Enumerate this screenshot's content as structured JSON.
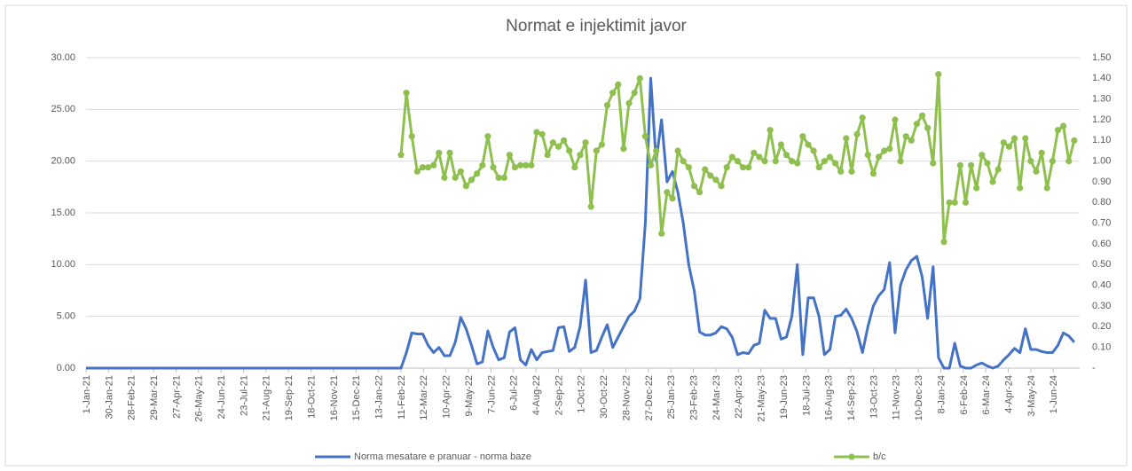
{
  "chart_data": {
    "type": "line",
    "title": "Normat e injektimit javor",
    "x": [
      "1-Jan-21",
      "11-Feb-22",
      "18-Feb-22",
      "25-Feb-22",
      "4-Mar-22",
      "11-Mar-22",
      "18-Mar-22",
      "25-Mar-22",
      "1-Apr-22",
      "8-Apr-22",
      "15-Apr-22",
      "22-Apr-22",
      "29-Apr-22",
      "6-May-22",
      "13-May-22",
      "20-May-22",
      "27-May-22",
      "3-Jun-22",
      "10-Jun-22",
      "17-Jun-22",
      "24-Jun-22",
      "1-Jul-22",
      "8-Jul-22",
      "15-Jul-22",
      "22-Jul-22",
      "29-Jul-22",
      "5-Aug-22",
      "12-Aug-22",
      "19-Aug-22",
      "26-Aug-22",
      "2-Sep-22",
      "9-Sep-22",
      "16-Sep-22",
      "23-Sep-22",
      "30-Sep-22",
      "7-Oct-22",
      "14-Oct-22",
      "21-Oct-22",
      "28-Oct-22",
      "4-Nov-22",
      "11-Nov-22",
      "18-Nov-22",
      "25-Nov-22",
      "2-Dec-22",
      "9-Dec-22",
      "16-Dec-22",
      "23-Dec-22",
      "30-Dec-22",
      "6-Jan-23",
      "13-Jan-23",
      "20-Jan-23",
      "27-Jan-23",
      "3-Feb-23",
      "10-Feb-23",
      "17-Feb-23",
      "24-Feb-23",
      "3-Mar-23",
      "10-Mar-23",
      "17-Mar-23",
      "24-Mar-23",
      "31-Mar-23",
      "7-Apr-23",
      "14-Apr-23",
      "21-Apr-23",
      "28-Apr-23",
      "5-May-23",
      "12-May-23",
      "19-May-23",
      "26-May-23",
      "2-Jun-23",
      "9-Jun-23",
      "16-Jun-23",
      "23-Jun-23",
      "30-Jun-23",
      "7-Jul-23",
      "14-Jul-23",
      "21-Jul-23",
      "28-Jul-23",
      "4-Aug-23",
      "11-Aug-23",
      "18-Aug-23",
      "25-Aug-23",
      "1-Sep-23",
      "8-Sep-23",
      "15-Sep-23",
      "22-Sep-23",
      "29-Sep-23",
      "6-Oct-23",
      "13-Oct-23",
      "20-Oct-23",
      "27-Oct-23",
      "3-Nov-23",
      "10-Nov-23",
      "17-Nov-23",
      "24-Nov-23",
      "1-Dec-23",
      "8-Dec-23",
      "15-Dec-23",
      "22-Dec-23",
      "29-Dec-23",
      "5-Jan-24",
      "12-Jan-24",
      "19-Jan-24",
      "26-Jan-24",
      "2-Feb-24",
      "9-Feb-24",
      "16-Feb-24",
      "23-Feb-24",
      "1-Mar-24",
      "8-Mar-24",
      "15-Mar-24",
      "22-Mar-24",
      "29-Mar-24",
      "5-Apr-24",
      "12-Apr-24",
      "19-Apr-24",
      "26-Apr-24",
      "3-May-24",
      "10-May-24",
      "17-May-24",
      "24-May-24",
      "31-May-24",
      "7-Jun-24",
      "14-Jun-24",
      "21-Jun-24",
      "28-Jun-24"
    ],
    "series": [
      {
        "name": "Norma mesatare e pranuar - norma baze",
        "color": "#4472c4",
        "values": [
          0,
          0,
          1.5,
          3.4,
          3.3,
          3.3,
          2.2,
          1.5,
          2.0,
          1.2,
          1.2,
          2.5,
          4.9,
          3.8,
          2.2,
          0.4,
          0.6,
          3.6,
          2.0,
          0.8,
          1.0,
          3.5,
          3.9,
          0.8,
          0.3,
          1.8,
          0.8,
          1.5,
          1.6,
          1.7,
          3.9,
          4.0,
          1.6,
          2.0,
          4.0,
          8.5,
          1.5,
          1.7,
          3.0,
          4.2,
          2.0,
          3.0,
          4.0,
          5.0,
          5.5,
          6.7,
          14,
          28,
          20,
          24,
          18,
          19,
          17,
          14,
          10,
          7.5,
          3.5,
          3.2,
          3.2,
          3.4,
          4.0,
          3.8,
          3.0,
          1.3,
          1.5,
          1.4,
          2.2,
          2.4,
          5.6,
          4.8,
          4.8,
          2.8,
          3.0,
          5.0,
          10.0,
          1.3,
          6.8,
          6.8,
          5.0,
          1.3,
          1.8,
          5.0,
          5.1,
          5.7,
          4.8,
          3.5,
          1.5,
          4.0,
          6.0,
          7.0,
          7.6,
          10.2,
          3.4,
          8.0,
          9.5,
          10.4,
          10.8,
          8.8,
          4.8,
          9.8,
          1.0,
          0.0,
          0.0,
          2.4,
          0.2,
          0.0,
          0.0,
          0.3,
          0.5,
          0.2,
          0.0,
          0.2,
          0.8,
          1.3,
          1.9,
          1.5,
          3.8,
          1.8,
          1.8,
          1.6,
          1.5,
          1.5,
          2.2,
          3.4,
          3.1,
          2.5
        ]
      },
      {
        "name": "b/c",
        "color": "#8fc04f",
        "axis": "y2",
        "marker": true,
        "values": [
          null,
          1.03,
          1.33,
          1.12,
          0.95,
          0.97,
          0.97,
          0.98,
          1.04,
          0.92,
          1.04,
          0.92,
          0.95,
          0.88,
          0.91,
          0.94,
          0.98,
          1.12,
          0.97,
          0.92,
          0.92,
          1.03,
          0.97,
          0.98,
          0.98,
          0.98,
          1.14,
          1.13,
          1.03,
          1.09,
          1.07,
          1.1,
          1.05,
          0.97,
          1.03,
          1.09,
          0.78,
          1.05,
          1.08,
          1.27,
          1.33,
          1.37,
          1.06,
          1.28,
          1.33,
          1.4,
          1.12,
          0.98,
          1.05,
          0.65,
          0.85,
          0.82,
          1.05,
          1.0,
          0.97,
          0.88,
          0.85,
          0.96,
          0.93,
          0.91,
          0.88,
          0.97,
          1.02,
          1.0,
          0.97,
          0.97,
          1.04,
          1.02,
          1.0,
          1.15,
          1.0,
          1.08,
          1.03,
          1.0,
          0.99,
          1.12,
          1.08,
          1.05,
          0.97,
          1.0,
          1.02,
          0.99,
          0.95,
          1.11,
          0.95,
          1.13,
          1.21,
          1.03,
          0.94,
          1.02,
          1.05,
          1.06,
          1.2,
          1.0,
          1.12,
          1.1,
          1.18,
          1.22,
          1.16,
          0.99,
          1.42,
          0.61,
          0.8,
          0.8,
          0.98,
          0.8,
          0.98,
          0.87,
          1.03,
          0.99,
          0.9,
          0.96,
          1.09,
          1.07,
          1.11,
          0.87,
          1.11,
          1.0,
          0.95,
          1.04,
          0.87,
          1.0,
          1.15,
          1.17,
          1.0,
          1.1
        ]
      }
    ],
    "xlim": [
      "1-Jan-21",
      "5-Jul-24"
    ],
    "xticks": [
      "1-Jan-21",
      "30-Jan-21",
      "28-Feb-21",
      "29-Mar-21",
      "27-Apr-21",
      "26-May-21",
      "24-Jun-21",
      "23-Jul-21",
      "21-Aug-21",
      "19-Sep-21",
      "18-Oct-21",
      "16-Nov-21",
      "15-Dec-21",
      "13-Jan-22",
      "11-Feb-22",
      "12-Mar-22",
      "10-Apr-22",
      "9-May-22",
      "7-Jun-22",
      "6-Jul-22",
      "4-Aug-22",
      "2-Sep-22",
      "1-Oct-22",
      "30-Oct-22",
      "28-Nov-22",
      "27-Dec-22",
      "25-Jan-23",
      "23-Feb-23",
      "24-Mar-23",
      "22-Apr-23",
      "21-May-23",
      "19-Jun-23",
      "18-Jul-23",
      "16-Aug-23",
      "14-Sep-23",
      "13-Oct-23",
      "11-Nov-23",
      "10-Dec-23",
      "8-Jan-24",
      "6-Feb-24",
      "6-Mar-24",
      "4-Apr-24",
      "3-May-24",
      "1-Jun-24"
    ],
    "ylim": [
      0,
      30
    ],
    "yticks": [
      {
        "value": 0,
        "label": "0.00"
      },
      {
        "value": 5,
        "label": "5.00"
      },
      {
        "value": 10,
        "label": "10.00"
      },
      {
        "value": 15,
        "label": "15.00"
      },
      {
        "value": 20,
        "label": "20.00"
      },
      {
        "value": 25,
        "label": "25.00"
      },
      {
        "value": 30,
        "label": "30.00"
      }
    ],
    "y2lim": [
      0,
      1.5
    ],
    "y2ticks": [
      {
        "value": 0,
        "label": "-"
      },
      {
        "value": 0.1,
        "label": "0.10"
      },
      {
        "value": 0.2,
        "label": "0.20"
      },
      {
        "value": 0.3,
        "label": "0.30"
      },
      {
        "value": 0.4,
        "label": "0.40"
      },
      {
        "value": 0.5,
        "label": "0.50"
      },
      {
        "value": 0.6,
        "label": "0.60"
      },
      {
        "value": 0.7,
        "label": "0.70"
      },
      {
        "value": 0.8,
        "label": "0.80"
      },
      {
        "value": 0.9,
        "label": "0.90"
      },
      {
        "value": 1.0,
        "label": "1.00"
      },
      {
        "value": 1.1,
        "label": "1.10"
      },
      {
        "value": 1.2,
        "label": "1.20"
      },
      {
        "value": 1.3,
        "label": "1.30"
      },
      {
        "value": 1.4,
        "label": "1.40"
      },
      {
        "value": 1.5,
        "label": "1.50"
      }
    ],
    "grid": true,
    "legend": "bottom"
  }
}
